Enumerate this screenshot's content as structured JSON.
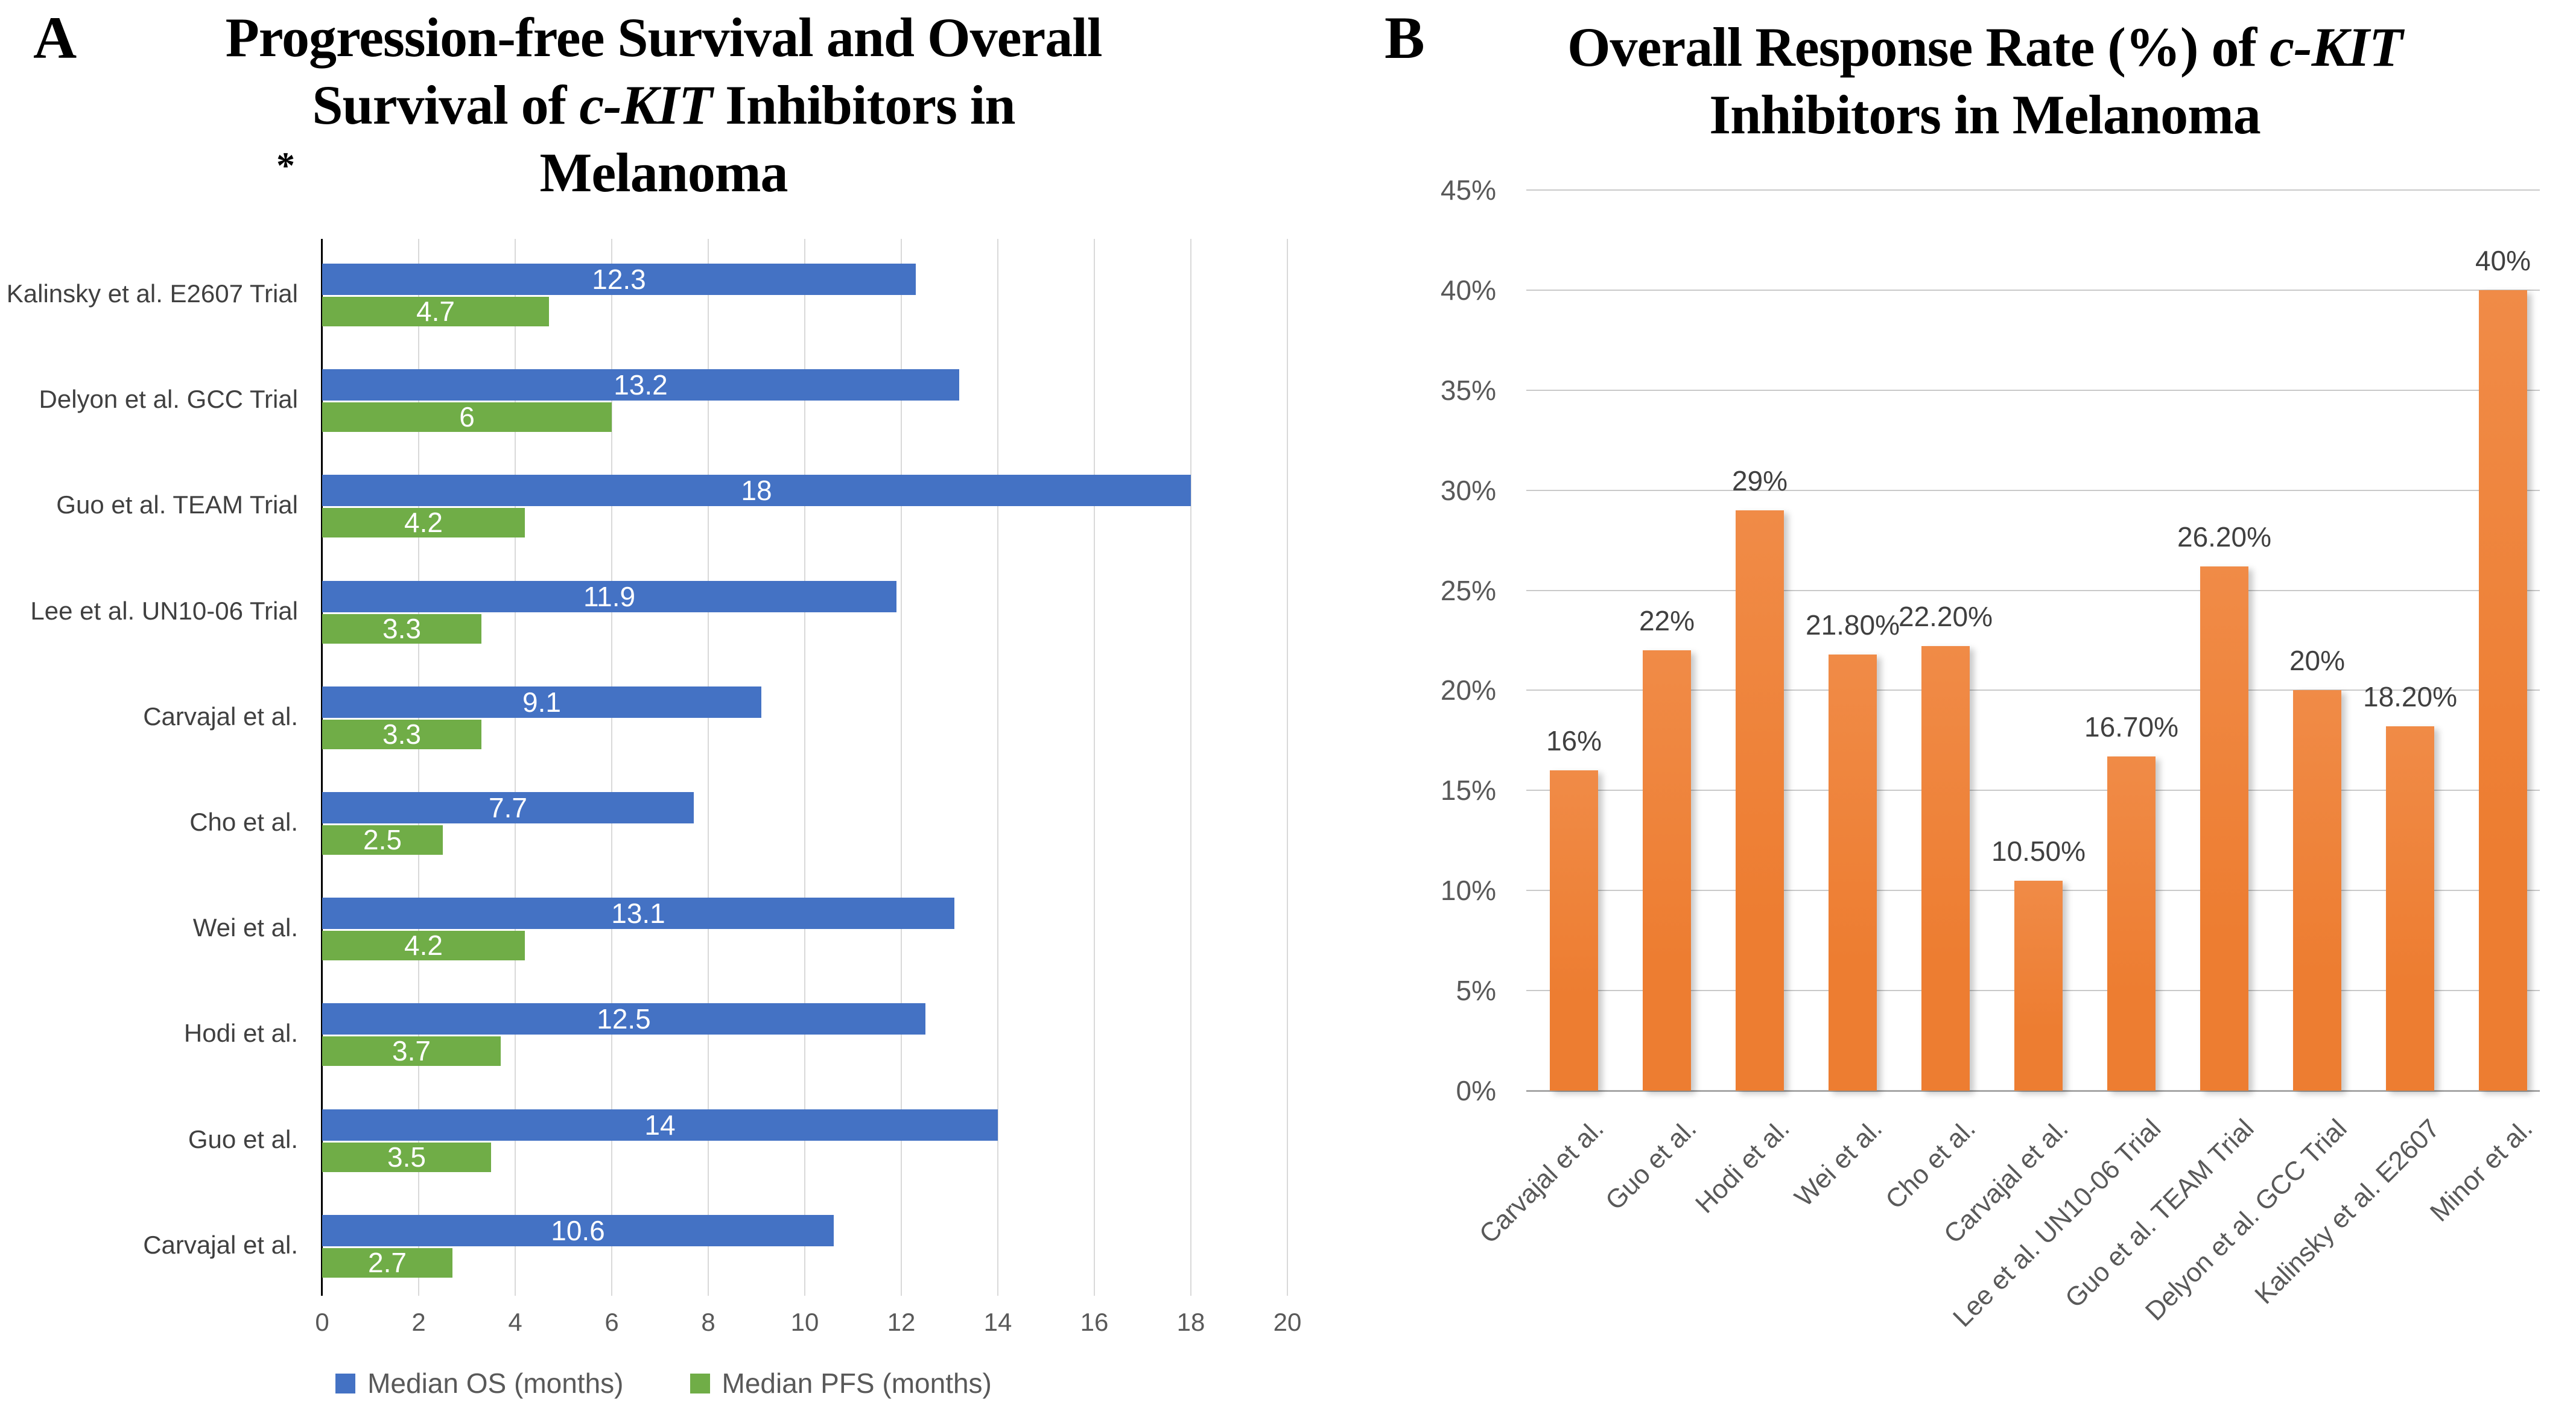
{
  "panel_a": {
    "panel_label": "A",
    "title": {
      "line1": "Progression-free Survival and Overall",
      "line2_pre": "Survival of ",
      "line2_italic": "c-KIT",
      "line2_post": " Inhibitors in",
      "line3": "Melanoma"
    },
    "annotation_asterisk": "*",
    "legend": [
      {
        "label": "Median OS (months)",
        "color": "#4472C4"
      },
      {
        "label": "Median PFS (months)",
        "color": "#70AD47"
      }
    ]
  },
  "panel_b": {
    "panel_label": "B",
    "title": {
      "line1_pre": "Overall Response Rate (%) of ",
      "line1_italic": "c-KIT",
      "line2": "Inhibitors in Melanoma"
    }
  },
  "chart_data": [
    {
      "id": "pfs-os-chart",
      "type": "bar",
      "orientation": "horizontal",
      "title": "Progression-free Survival and Overall Survival of c-KIT Inhibitors in Melanoma",
      "categories": [
        "Kalinsky et al. E2607 Trial",
        "Delyon et al. GCC Trial",
        "Guo et al. TEAM Trial",
        "Lee et al. UN10-06 Trial",
        "Carvajal et al.",
        "Cho et al.",
        "Wei et al.",
        "Hodi et al.",
        "Guo et al.",
        "Carvajal et al."
      ],
      "series": [
        {
          "name": "Median OS (months)",
          "color": "#4472C4",
          "values": [
            12.3,
            13.2,
            18,
            11.9,
            9.1,
            7.7,
            13.1,
            12.5,
            14,
            10.6
          ],
          "labels": [
            "12.3",
            "13.2",
            "18",
            "11.9",
            "9.1",
            "7.7",
            "13.1",
            "12.5",
            "14",
            "10.6"
          ]
        },
        {
          "name": "Median PFS (months)",
          "color": "#70AD47",
          "values": [
            4.7,
            6,
            4.2,
            3.3,
            3.3,
            2.5,
            4.2,
            3.7,
            3.5,
            2.7
          ],
          "labels": [
            "4.7",
            "6",
            "4.2",
            "3.3",
            "3.3",
            "2.5",
            "4.2",
            "3.7",
            "3.5",
            "2.7"
          ]
        }
      ],
      "xlabel": "",
      "ylabel": "",
      "xlim": [
        0,
        20
      ],
      "xticks": [
        0,
        2,
        4,
        6,
        8,
        10,
        12,
        14,
        16,
        18,
        20
      ],
      "grid": true,
      "legend_position": "bottom"
    },
    {
      "id": "orr-chart",
      "type": "bar",
      "orientation": "vertical",
      "title": "Overall Response Rate (%) of c-KIT Inhibitors in Melanoma",
      "categories": [
        "Carvajal et al.",
        "Guo et al.",
        "Hodi et al.",
        "Wei et al.",
        "Cho et al.",
        "Carvajal et al.",
        "Lee et al. UN10-06 Trial",
        "Guo et al. TEAM Trial",
        "Delyon et al. GCC Trial",
        "Kalinsky et al. E2607",
        "Minor et al."
      ],
      "values": [
        16,
        22,
        29,
        21.8,
        22.2,
        10.5,
        16.7,
        26.2,
        20,
        18.2,
        40
      ],
      "labels": [
        "16%",
        "22%",
        "29%",
        "21.80%",
        "22.20%",
        "10.50%",
        "16.70%",
        "26.20%",
        "20%",
        "18.20%",
        "40%"
      ],
      "bar_color": "#ED7D31",
      "bar_color_light": "#F08B47",
      "xlabel": "",
      "ylabel": "",
      "ylim": [
        0,
        45
      ],
      "ytick_values": [
        0,
        5,
        10,
        15,
        20,
        25,
        30,
        35,
        40,
        45
      ],
      "ytick_labels": [
        "0%",
        "5%",
        "10%",
        "15%",
        "20%",
        "25%",
        "30%",
        "35%",
        "40%",
        "45%"
      ],
      "grid": true,
      "legend_position": "none"
    }
  ]
}
